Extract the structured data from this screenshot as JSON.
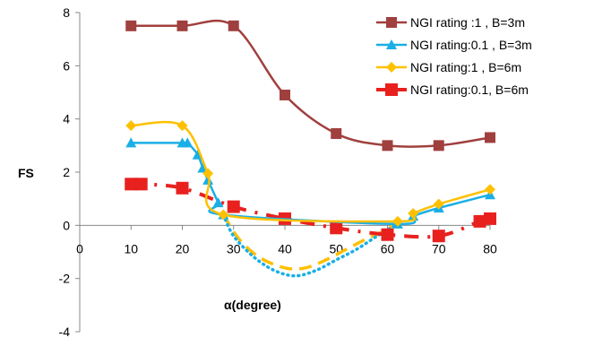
{
  "chart_data": {
    "type": "line",
    "xlabel": "α(degree)",
    "ylabel": "FS",
    "xlim": [
      0,
      80
    ],
    "ylim": [
      -4,
      8
    ],
    "x_ticks": [
      "0",
      "10",
      "20",
      "30",
      "40",
      "50",
      "60",
      "70",
      "80"
    ],
    "y_ticks": [
      "8",
      "6",
      "4",
      "2",
      "0",
      "-2",
      "-4"
    ],
    "grid": false,
    "legend_position": "top-right",
    "series": [
      {
        "name": "NGI rating :1 , B=3m",
        "color": "#A0403E",
        "marker": "square",
        "line_style": "solid",
        "x": [
          10,
          20,
          30,
          40,
          50,
          60,
          70,
          80
        ],
        "y": [
          7.5,
          7.5,
          7.5,
          4.9,
          3.45,
          3.0,
          3.0,
          3.3
        ]
      },
      {
        "name": "NGI rating:0.1 , B=3m",
        "color": "#1AAFE6",
        "marker": "triangle",
        "line_style": "solid",
        "x": [
          10,
          20,
          21,
          23,
          24,
          25,
          27,
          28,
          62,
          65,
          70,
          80
        ],
        "y": [
          3.1,
          3.1,
          3.1,
          2.65,
          2.15,
          1.7,
          0.85,
          0.4,
          0.05,
          0.35,
          0.65,
          1.15
        ]
      },
      {
        "name": "NGI rating:0.1 , B=3m",
        "color": "#1AAFE6",
        "marker": "none",
        "line_style": "dotted",
        "x": [
          28,
          30,
          34,
          38,
          42,
          46,
          50,
          54,
          58,
          62
        ],
        "y": [
          0.4,
          -0.4,
          -1.2,
          -1.7,
          -1.9,
          -1.7,
          -1.3,
          -0.9,
          -0.4,
          0.05
        ]
      },
      {
        "name": "NGI rating:1 , B=6m",
        "color": "#FFC000",
        "marker": "diamond",
        "line_style": "solid",
        "x": [
          10,
          20,
          25,
          28,
          62,
          65,
          70,
          80
        ],
        "y": [
          3.75,
          3.75,
          1.95,
          0.4,
          0.15,
          0.45,
          0.8,
          1.35
        ]
      },
      {
        "name": "NGI rating:1 , B=6m",
        "color": "#FFC000",
        "marker": "none",
        "line_style": "dashed",
        "x": [
          28,
          31,
          35,
          40,
          44,
          48,
          52,
          56,
          60,
          62
        ],
        "y": [
          0.4,
          -0.5,
          -1.2,
          -1.6,
          -1.6,
          -1.3,
          -0.9,
          -0.5,
          -0.15,
          0.15
        ]
      },
      {
        "name": "NGI rating:0.1, B=6m",
        "color": "#E8211F",
        "marker": "square",
        "line_style": "dashdot",
        "x": [
          10,
          12,
          20,
          30,
          40,
          50,
          60,
          70,
          78,
          80
        ],
        "y": [
          1.55,
          1.55,
          1.4,
          0.7,
          0.25,
          -0.1,
          -0.35,
          -0.4,
          0.15,
          0.25
        ]
      }
    ],
    "legend": [
      {
        "label": "NGI rating :1 , B=3m",
        "color": "#A0403E",
        "marker": "square",
        "line_style": "solid"
      },
      {
        "label": "NGI rating:0.1 , B=3m",
        "color": "#1AAFE6",
        "marker": "triangle",
        "line_style": "solid"
      },
      {
        "label": "NGI rating:1 , B=6m",
        "color": "#FFC000",
        "marker": "diamond",
        "line_style": "solid"
      },
      {
        "label": "NGI rating:0.1, B=6m",
        "color": "#E8211F",
        "marker": "square",
        "line_style": "solid"
      }
    ]
  }
}
